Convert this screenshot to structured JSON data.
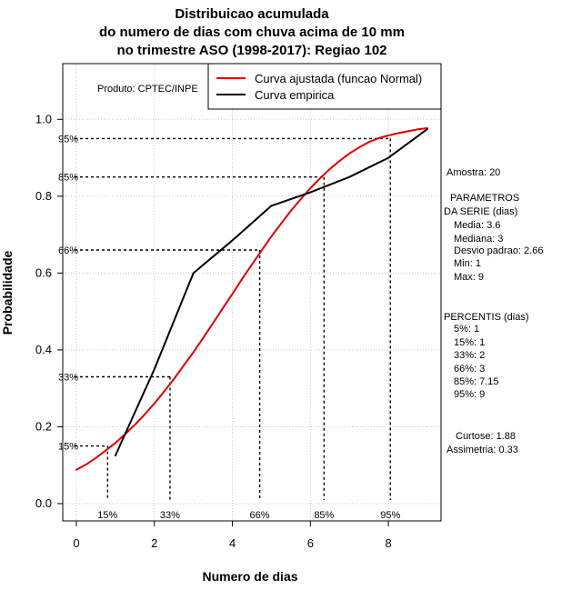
{
  "chart_data": {
    "type": "line",
    "title_lines": [
      "Distribuicao acumulada",
      "do numero de dias com chuva acima de 10 mm",
      "no trimestre ASO (1998-2017): Regiao 102"
    ],
    "xlabel": "Numero de dias",
    "ylabel": "Probabilidade",
    "xlim": [
      -0.35,
      9.35
    ],
    "ylim": [
      -0.045,
      1.145
    ],
    "x_ticks": [
      0,
      2,
      4,
      6,
      8
    ],
    "x_tick_labels": [
      "0",
      "2",
      "4",
      "6",
      "8"
    ],
    "y_ticks": [
      0.0,
      0.2,
      0.4,
      0.6,
      0.8,
      1.0
    ],
    "y_tick_labels": [
      "0.0",
      "0.2",
      "0.4",
      "0.6",
      "0.8",
      "1.0"
    ],
    "grid": true,
    "product_label": "Produto: CPTEC/INPE",
    "legend_position": "top-right",
    "series": [
      {
        "name": "Curva ajustada (funcao Normal)",
        "color": "#dd0000",
        "x": [
          0,
          0.25,
          0.5,
          0.75,
          1,
          1.25,
          1.5,
          1.75,
          2,
          2.25,
          2.5,
          2.75,
          3,
          3.25,
          3.5,
          3.75,
          4,
          4.25,
          4.5,
          4.75,
          5,
          5.25,
          5.5,
          5.75,
          6,
          6.25,
          6.5,
          6.75,
          7,
          7.25,
          7.5,
          7.75,
          8,
          8.25,
          8.5,
          8.75,
          9
        ],
        "y": [
          0.088,
          0.102,
          0.119,
          0.138,
          0.158,
          0.181,
          0.205,
          0.232,
          0.261,
          0.292,
          0.324,
          0.359,
          0.394,
          0.431,
          0.469,
          0.508,
          0.546,
          0.585,
          0.622,
          0.659,
          0.695,
          0.729,
          0.762,
          0.792,
          0.821,
          0.847,
          0.871,
          0.892,
          0.911,
          0.927,
          0.941,
          0.951,
          0.958,
          0.964,
          0.969,
          0.974,
          0.977
        ]
      },
      {
        "name": "Curva empirica",
        "color": "#000000",
        "x": [
          1,
          2,
          3,
          4,
          5,
          6,
          7,
          8,
          9
        ],
        "y": [
          0.125,
          0.35,
          0.6,
          0.685,
          0.775,
          0.81,
          0.85,
          0.9,
          0.975
        ]
      }
    ],
    "percentile_markers": [
      {
        "label": "15%",
        "x": 0.8,
        "y": 0.15
      },
      {
        "label": "33%",
        "x": 2.4,
        "y": 0.33
      },
      {
        "label": "66%",
        "x": 4.7,
        "y": 0.66
      },
      {
        "label": "85%",
        "x": 6.35,
        "y": 0.85
      },
      {
        "label": "95%",
        "x": 8.05,
        "y": 0.95
      }
    ]
  },
  "side_panel": {
    "sample": "Amostra: 20",
    "params_heading_1": "PARAMETROS",
    "params_heading_2": "DA SERIE (dias)",
    "mean": "Media: 3.6",
    "median": "Mediana: 3",
    "stdev": "Desvio padrao: 2.66",
    "min": "Min: 1",
    "max": "Max: 9",
    "percentiles_heading": "PERCENTIS (dias)",
    "p5": "5%: 1",
    "p15": "15%: 1",
    "p33": "33%: 2",
    "p66": "66%: 3",
    "p85": "85%: 7.15",
    "p95": "95%: 9",
    "kurtosis": "Curtose: 1.88",
    "skewness": "Assimetria: 0.33"
  }
}
